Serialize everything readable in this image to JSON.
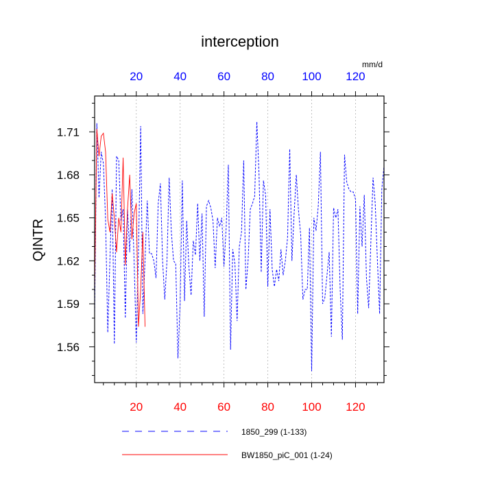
{
  "chart_data": {
    "type": "line",
    "title": "interception",
    "ylabel": "QINTR",
    "units_label": "mm/d",
    "xlim": [
      1,
      133
    ],
    "ylim": [
      1.535,
      1.735
    ],
    "yticks": [
      1.56,
      1.59,
      1.62,
      1.65,
      1.68,
      1.71
    ],
    "ytick_labels": [
      "1.56",
      "1.59",
      "1.62",
      "1.65",
      "1.68",
      "1.71"
    ],
    "xticks": [
      20,
      40,
      60,
      80,
      100,
      120
    ],
    "xtick_labels": [
      "20",
      "40",
      "60",
      "80",
      "100",
      "120"
    ],
    "bottom_axis_color": "#ff0000",
    "top_axis_color": "#0000ff",
    "series": [
      {
        "name": "1850_299 (1-133)",
        "color": "#0000ff",
        "dash": "dashed",
        "x_start": 1,
        "values": [
          1.582,
          1.716,
          1.664,
          1.696,
          1.688,
          1.648,
          1.57,
          1.622,
          1.67,
          1.562,
          1.693,
          1.69,
          1.648,
          1.656,
          1.58,
          1.656,
          1.626,
          1.67,
          1.62,
          1.563,
          1.626,
          1.714,
          1.583,
          1.62,
          1.662,
          1.625,
          1.625,
          1.62,
          1.608,
          1.66,
          1.674,
          1.62,
          1.593,
          1.62,
          1.678,
          1.64,
          1.62,
          1.618,
          1.552,
          1.59,
          1.676,
          1.592,
          1.648,
          1.616,
          1.596,
          1.634,
          1.624,
          1.66,
          1.62,
          1.653,
          1.581,
          1.658,
          1.662,
          1.657,
          1.648,
          1.615,
          1.65,
          1.644,
          1.65,
          1.616,
          1.643,
          1.687,
          1.558,
          1.628,
          1.618,
          1.578,
          1.63,
          1.64,
          1.69,
          1.6,
          1.62,
          1.656,
          1.66,
          1.665,
          1.717,
          1.68,
          1.612,
          1.676,
          1.666,
          1.602,
          1.656,
          1.614,
          1.602,
          1.614,
          1.606,
          1.628,
          1.61,
          1.62,
          1.636,
          1.698,
          1.62,
          1.653,
          1.68,
          1.655,
          1.638,
          1.593,
          1.6,
          1.6,
          1.643,
          1.543,
          1.65,
          1.641,
          1.658,
          1.696,
          1.59,
          1.594,
          1.61,
          1.626,
          1.567,
          1.657,
          1.65,
          1.656,
          1.6,
          1.565,
          1.694,
          1.675,
          1.67,
          1.668,
          1.668,
          1.663,
          1.583,
          1.658,
          1.63,
          1.666,
          1.608,
          1.587,
          1.633,
          1.678,
          1.66,
          1.62,
          1.583,
          1.67,
          1.686
        ]
      },
      {
        "name": "BW1850_piC_001 (1-24)",
        "color": "#ff0000",
        "dash": "solid",
        "x_start": 1,
        "values": [
          1.598,
          1.712,
          1.693,
          1.707,
          1.709,
          1.696,
          1.649,
          1.64,
          1.667,
          1.65,
          1.626,
          1.65,
          1.64,
          1.692,
          1.617,
          1.656,
          1.68,
          1.635,
          1.653,
          1.66,
          1.574,
          1.6,
          1.64,
          1.574
        ]
      }
    ]
  }
}
